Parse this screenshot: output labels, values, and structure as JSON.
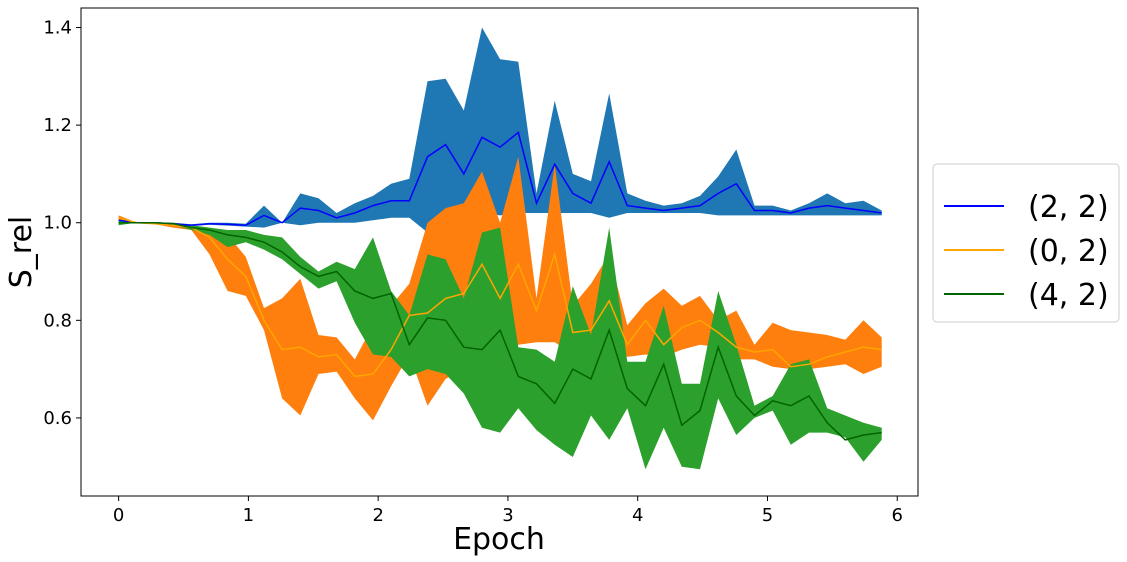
{
  "chart_data": {
    "type": "line",
    "xlabel": "Epoch",
    "ylabel": "S_rel",
    "xlim": [
      -0.29,
      6.16
    ],
    "ylim": [
      0.44,
      1.44
    ],
    "xticks": [
      0,
      1,
      2,
      3,
      4,
      5,
      6
    ],
    "yticks": [
      0.6,
      0.8,
      1.0,
      1.2,
      1.4
    ],
    "grid": false,
    "legend_position": "outside-right",
    "x": [
      0,
      0.14,
      0.28,
      0.42,
      0.56,
      0.7,
      0.84,
      0.98,
      1.12,
      1.26,
      1.4,
      1.54,
      1.68,
      1.82,
      1.96,
      2.1,
      2.24,
      2.38,
      2.52,
      2.66,
      2.8,
      2.94,
      3.08,
      3.22,
      3.36,
      3.5,
      3.64,
      3.78,
      3.92,
      4.06,
      4.2,
      4.34,
      4.48,
      4.62,
      4.76,
      4.9,
      5.04,
      5.18,
      5.32,
      5.46,
      5.6,
      5.74,
      5.88
    ],
    "series": [
      {
        "name": "(2, 2)",
        "line_color": "#0000ff",
        "band_color": "#1f77b4",
        "values": [
          1.005,
          1.0,
          1.0,
          0.998,
          0.995,
          0.998,
          0.997,
          0.995,
          1.015,
          1.0,
          1.03,
          1.025,
          1.01,
          1.02,
          1.035,
          1.045,
          1.045,
          1.135,
          1.16,
          1.1,
          1.175,
          1.155,
          1.185,
          1.04,
          1.12,
          1.06,
          1.04,
          1.125,
          1.035,
          1.03,
          1.025,
          1.03,
          1.035,
          1.06,
          1.08,
          1.025,
          1.025,
          1.02,
          1.03,
          1.035,
          1.03,
          1.025,
          1.02
        ],
        "lower": [
          1.0,
          1.0,
          1.0,
          0.996,
          0.993,
          0.996,
          0.994,
          0.992,
          0.99,
          1.0,
          0.995,
          1.0,
          1.0,
          1.0,
          1.005,
          1.01,
          1.01,
          0.98,
          1.01,
          1.0,
          1.02,
          1.015,
          1.02,
          1.02,
          1.02,
          1.02,
          1.02,
          1.01,
          1.02,
          1.02,
          1.02,
          1.02,
          1.02,
          1.015,
          1.015,
          1.015,
          1.015,
          1.015,
          1.015,
          1.015,
          1.015,
          1.015,
          1.015
        ],
        "upper": [
          1.01,
          1.0,
          1.0,
          1.0,
          0.997,
          1.0,
          1.0,
          0.998,
          1.035,
          1.0,
          1.06,
          1.05,
          1.02,
          1.04,
          1.055,
          1.08,
          1.09,
          1.29,
          1.295,
          1.23,
          1.4,
          1.335,
          1.33,
          1.06,
          1.25,
          1.1,
          1.085,
          1.265,
          1.06,
          1.045,
          1.035,
          1.04,
          1.055,
          1.095,
          1.15,
          1.035,
          1.035,
          1.025,
          1.04,
          1.06,
          1.04,
          1.045,
          1.025
        ]
      },
      {
        "name": "(0, 2)",
        "line_color": "#ffa500",
        "band_color": "#ff7f0e",
        "values": [
          1.01,
          1.0,
          0.998,
          0.995,
          0.99,
          0.97,
          0.925,
          0.89,
          0.8,
          0.74,
          0.745,
          0.725,
          0.73,
          0.685,
          0.69,
          0.74,
          0.81,
          0.815,
          0.845,
          0.855,
          0.915,
          0.845,
          0.915,
          0.82,
          0.935,
          0.775,
          0.78,
          0.84,
          0.75,
          0.8,
          0.75,
          0.785,
          0.8,
          0.775,
          0.745,
          0.735,
          0.74,
          0.705,
          0.71,
          0.725,
          0.735,
          0.745,
          0.74
        ],
        "lower": [
          1.0,
          1.0,
          0.997,
          0.99,
          0.985,
          0.935,
          0.86,
          0.85,
          0.78,
          0.64,
          0.605,
          0.69,
          0.695,
          0.64,
          0.595,
          0.665,
          0.73,
          0.625,
          0.68,
          0.7,
          0.76,
          0.715,
          0.75,
          0.755,
          0.755,
          0.73,
          0.76,
          0.765,
          0.725,
          0.73,
          0.725,
          0.74,
          0.75,
          0.745,
          0.72,
          0.72,
          0.705,
          0.7,
          0.7,
          0.705,
          0.71,
          0.69,
          0.705
        ],
        "upper": [
          1.015,
          1.0,
          1.0,
          1.0,
          0.995,
          0.99,
          0.975,
          0.93,
          0.825,
          0.845,
          0.885,
          0.77,
          0.765,
          0.72,
          0.79,
          0.83,
          0.875,
          1.0,
          1.03,
          1.04,
          1.105,
          1.0,
          1.135,
          0.845,
          1.12,
          0.83,
          0.875,
          0.935,
          0.79,
          0.835,
          0.865,
          0.83,
          0.85,
          0.8,
          0.82,
          0.75,
          0.795,
          0.78,
          0.775,
          0.77,
          0.76,
          0.8,
          0.765
        ]
      },
      {
        "name": "(4, 2)",
        "line_color": "#006400",
        "band_color": "#2ca02c",
        "values": [
          1.0,
          1.0,
          1.0,
          0.998,
          0.99,
          0.985,
          0.975,
          0.97,
          0.96,
          0.94,
          0.91,
          0.89,
          0.9,
          0.86,
          0.845,
          0.855,
          0.75,
          0.805,
          0.8,
          0.745,
          0.74,
          0.78,
          0.685,
          0.67,
          0.63,
          0.7,
          0.68,
          0.78,
          0.66,
          0.625,
          0.71,
          0.585,
          0.615,
          0.745,
          0.645,
          0.605,
          0.635,
          0.625,
          0.645,
          0.59,
          0.555,
          0.565,
          0.57
        ],
        "lower": [
          0.995,
          1.0,
          0.998,
          0.995,
          0.985,
          0.975,
          0.95,
          0.96,
          0.945,
          0.925,
          0.895,
          0.865,
          0.88,
          0.795,
          0.73,
          0.725,
          0.685,
          0.7,
          0.69,
          0.65,
          0.58,
          0.57,
          0.62,
          0.575,
          0.545,
          0.52,
          0.605,
          0.555,
          0.62,
          0.495,
          0.58,
          0.5,
          0.495,
          0.64,
          0.565,
          0.6,
          0.615,
          0.545,
          0.57,
          0.57,
          0.56,
          0.51,
          0.555
        ],
        "upper": [
          1.005,
          1.0,
          1.0,
          1.0,
          0.995,
          0.99,
          0.985,
          0.985,
          0.975,
          0.97,
          0.93,
          0.9,
          0.92,
          0.905,
          0.97,
          0.86,
          0.81,
          0.935,
          0.925,
          0.845,
          0.98,
          0.99,
          0.745,
          0.74,
          0.715,
          0.87,
          0.77,
          0.99,
          0.715,
          0.715,
          0.83,
          0.67,
          0.67,
          0.86,
          0.75,
          0.625,
          0.645,
          0.71,
          0.72,
          0.62,
          0.605,
          0.59,
          0.58
        ]
      }
    ]
  }
}
